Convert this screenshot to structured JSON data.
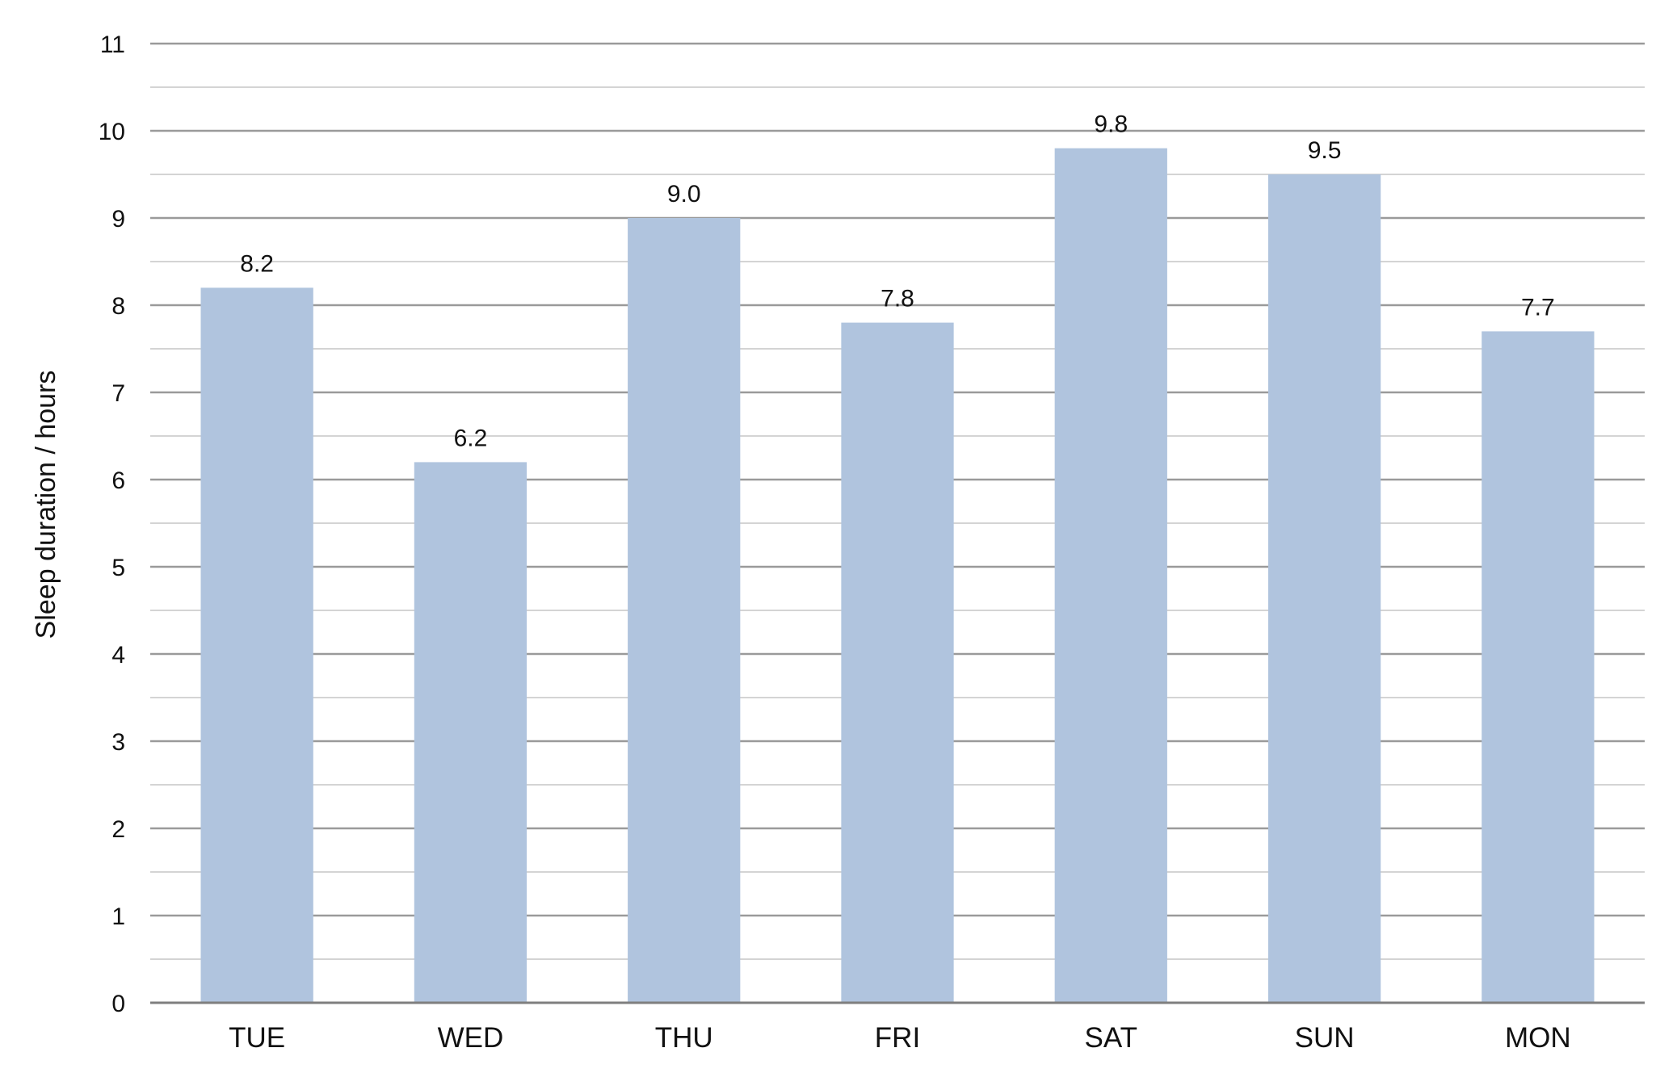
{
  "chart_data": {
    "type": "bar",
    "title": "",
    "xlabel": "",
    "ylabel": "Sleep duration / hours",
    "categories": [
      "TUE",
      "WED",
      "THU",
      "FRI",
      "SAT",
      "SUN",
      "MON"
    ],
    "values": [
      8.2,
      6.2,
      9.0,
      7.8,
      9.8,
      9.5,
      7.7
    ],
    "value_labels": [
      "8.2",
      "6.2",
      "9.0",
      "7.8",
      "9.8",
      "9.5",
      "7.7"
    ],
    "ylim": [
      0,
      11
    ],
    "yticks": [
      0,
      1,
      2,
      3,
      4,
      5,
      6,
      7,
      8,
      9,
      10,
      11
    ],
    "minor_grid_step": 0.5,
    "grid": true,
    "legend": "none",
    "colors": {
      "bar": "#b0c4de",
      "major_grid": "#9a9a9a",
      "minor_grid": "#d4d4d4",
      "axis": "#7f7f7f",
      "text": "#111111"
    }
  }
}
